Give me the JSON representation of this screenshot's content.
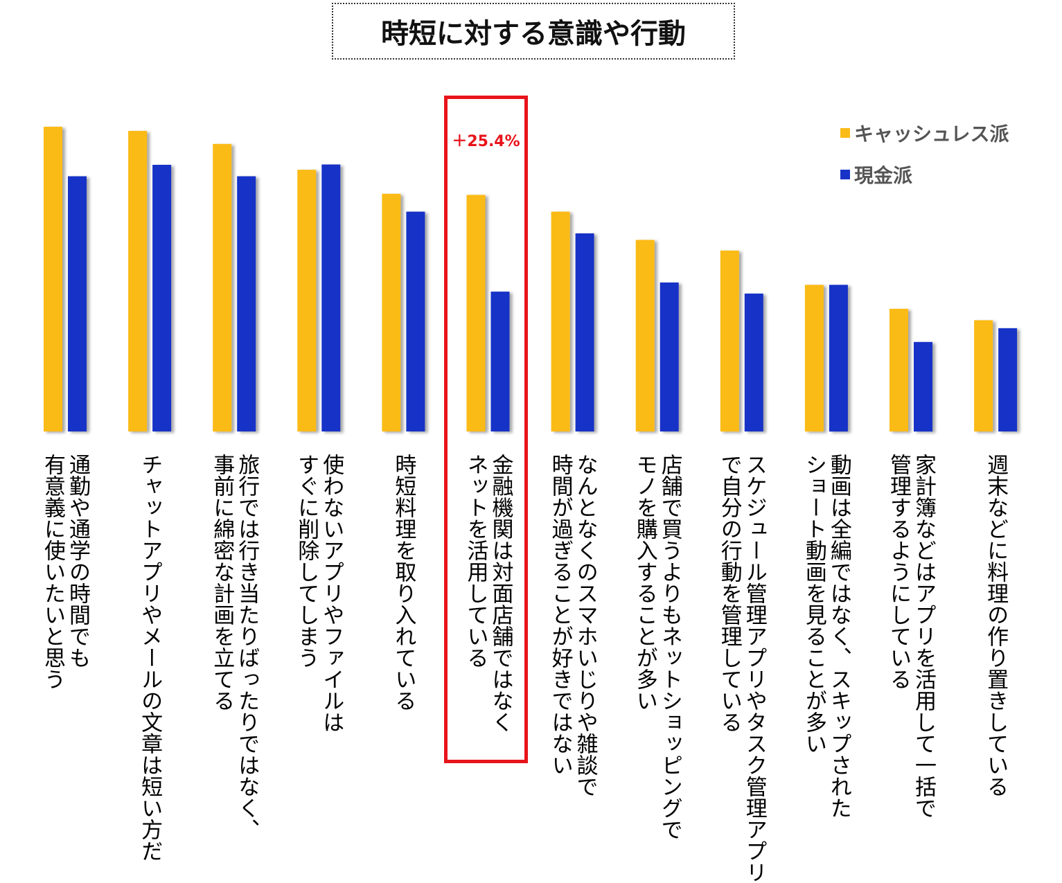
{
  "chart_data": {
    "type": "bar",
    "title": "時短に対する意識や行動",
    "xlabel": "",
    "ylabel": "",
    "ylim": [
      0,
      100
    ],
    "categories": [
      "通勤や通学の時間でも\n有意義に使いたいと思う",
      "チャットアプリやメールの文章は短い方だ",
      "旅行では行き当たりばったりではなく、\n事前に綿密な計画を立てる",
      "使わないアプリやファイルは\nすぐに削除してしまう",
      "時短料理を取り入れている",
      "金融機関は対面店舗ではなく\nネットを活用している",
      "なんとなくのスマホいじりや雑談で\n時間が過ぎることが好きではない",
      "店舗で買うよりもネットショッピングで\nモノを購入することが多い",
      "スケジュール管理アプリやタスク管理アプリ\nで自分の行動を管理している",
      "動画は全編ではなく、スキップされた\nショート動画を見ることが多い",
      "家計簿などはアプリを活用して一括で\n管理するようにしている",
      "週末などに料理の作り置きしている"
    ],
    "series": [
      {
        "name": "キャッシュレス派",
        "color": "#FBBB16",
        "values": [
          80.0,
          78.9,
          75.5,
          68.7,
          62.4,
          62.1,
          57.7,
          50.3,
          47.5,
          38.5,
          32.2,
          29.2
        ]
      },
      {
        "name": "現金派",
        "color": "#1733C7",
        "values": [
          67.0,
          70.0,
          67.0,
          70.1,
          57.7,
          36.7,
          52.0,
          39.1,
          36.2,
          38.5,
          23.5,
          27.1
        ]
      }
    ],
    "legend_position": "top-right",
    "annotation": {
      "text": "＋25.4%",
      "category_index": 5,
      "color": "#E8141B"
    }
  }
}
